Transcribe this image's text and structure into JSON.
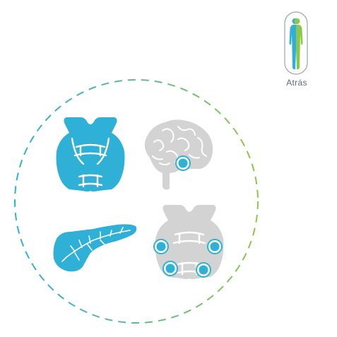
{
  "back": {
    "label": "Atrás"
  },
  "colors": {
    "accent_blue": "#2fb0d6",
    "accent_green": "#8ec64a",
    "inactive_gray": "#d3d3d3",
    "label_gray": "#5f6a73"
  },
  "icons": [
    "body-silhouette-icon",
    "thyroid-icon",
    "brain-icon",
    "pancreas-icon",
    "parathyroid-icon"
  ]
}
